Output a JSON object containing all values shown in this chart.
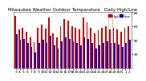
{
  "title": "Milwaukee Weather Outdoor Temperature   Daily High/Low",
  "background_color": "#ffffff",
  "high_color": "#cc0000",
  "low_color": "#0000bb",
  "labels": [
    "3",
    "4",
    "5",
    "6",
    "7",
    "8",
    "9",
    "10",
    "11",
    "12",
    "13",
    "14",
    "15",
    "16",
    "17",
    "18",
    "19",
    "20",
    "21",
    "22",
    "23",
    "24",
    "25",
    "26",
    "27",
    "28",
    "29",
    "30",
    "31",
    "1",
    "2"
  ],
  "highs": [
    75,
    55,
    58,
    52,
    44,
    37,
    58,
    62,
    56,
    72,
    50,
    44,
    60,
    70,
    68,
    60,
    58,
    55,
    72,
    65,
    58,
    50,
    54,
    58,
    60,
    55,
    58,
    55,
    52,
    58,
    60
  ],
  "lows": [
    48,
    40,
    42,
    36,
    30,
    22,
    36,
    40,
    36,
    46,
    32,
    28,
    38,
    44,
    42,
    38,
    36,
    33,
    44,
    42,
    36,
    28,
    32,
    36,
    38,
    36,
    36,
    34,
    30,
    36,
    40
  ],
  "ylim": [
    0,
    80
  ],
  "yticks": [
    20,
    40,
    60,
    80
  ],
  "ytick_labels": [
    "20",
    "40",
    "60",
    "80"
  ],
  "current_day_idx": 25,
  "bar_width": 0.38,
  "title_fontsize": 4.0,
  "tick_fontsize": 3.2,
  "legend_fontsize": 2.8
}
